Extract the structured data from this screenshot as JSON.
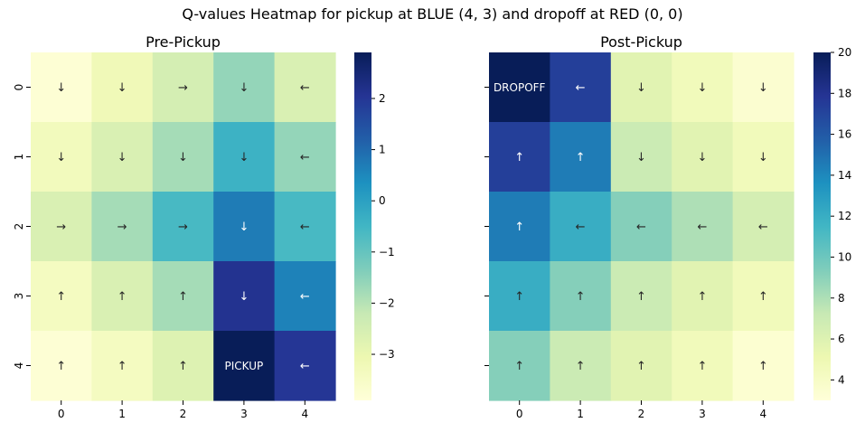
{
  "suptitle": "Q-values Heatmap for pickup at BLUE (4, 3) and dropoff at RED (0, 0)",
  "colormap": [
    "#ffffd9",
    "#edf8b1",
    "#c7e9b4",
    "#7fcdbb",
    "#41b6c4",
    "#1d91c0",
    "#225ea8",
    "#253494",
    "#081d58"
  ],
  "chart_data": [
    {
      "type": "heatmap",
      "title": "Pre-Pickup",
      "xticks": [
        "0",
        "1",
        "2",
        "3",
        "4"
      ],
      "yticks": [
        "0",
        "1",
        "2",
        "3",
        "4"
      ],
      "vmin": -3.9,
      "vmax": 2.9,
      "colorbar_ticks": [
        2,
        1,
        0,
        -1,
        -2,
        -3
      ],
      "colorbar_labels": [
        "2",
        "1",
        "0",
        "−1",
        "−2",
        "−3"
      ],
      "values": [
        [
          -3.8,
          -3.2,
          -2.5,
          -1.6,
          -2.6
        ],
        [
          -3.3,
          -2.6,
          -1.8,
          -0.4,
          -1.6
        ],
        [
          -2.6,
          -1.8,
          -0.6,
          0.7,
          -0.6
        ],
        [
          -3.4,
          -2.6,
          -1.8,
          2.1,
          0.6
        ],
        [
          -3.8,
          -3.4,
          -2.7,
          2.9,
          2.0
        ]
      ],
      "annotations": [
        [
          "↓",
          "↓",
          "→",
          "↓",
          "←"
        ],
        [
          "↓",
          "↓",
          "↓",
          "↓",
          "←"
        ],
        [
          "→",
          "→",
          "→",
          "↓",
          "←"
        ],
        [
          "↑",
          "↑",
          "↑",
          "↓",
          "←"
        ],
        [
          "↑",
          "↑",
          "↑",
          "PICKUP",
          "←"
        ]
      ]
    },
    {
      "type": "heatmap",
      "title": "Post-Pickup",
      "xticks": [
        "0",
        "1",
        "2",
        "3",
        "4"
      ],
      "yticks": [],
      "vmin": 3,
      "vmax": 20,
      "colorbar_ticks": [
        20,
        18,
        16,
        14,
        12,
        10,
        8,
        6,
        4
      ],
      "colorbar_labels": [
        "20",
        "18",
        "16",
        "14",
        "12",
        "10",
        "8",
        "6",
        "4"
      ],
      "values": [
        [
          20.0,
          17.3,
          5.8,
          4.6,
          3.5
        ],
        [
          17.3,
          14.5,
          7.0,
          5.8,
          4.6
        ],
        [
          14.5,
          12.0,
          9.2,
          8.0,
          6.5
        ],
        [
          12.0,
          9.2,
          7.0,
          5.8,
          4.6
        ],
        [
          9.2,
          7.0,
          5.8,
          4.6,
          3.4
        ]
      ],
      "annotations": [
        [
          "DROPOFF",
          "←",
          "↓",
          "↓",
          "↓"
        ],
        [
          "↑",
          "↑",
          "↓",
          "↓",
          "↓"
        ],
        [
          "↑",
          "←",
          "←",
          "←",
          "←"
        ],
        [
          "↑",
          "↑",
          "↑",
          "↑",
          "↑"
        ],
        [
          "↑",
          "↑",
          "↑",
          "↑",
          "↑"
        ]
      ]
    }
  ]
}
